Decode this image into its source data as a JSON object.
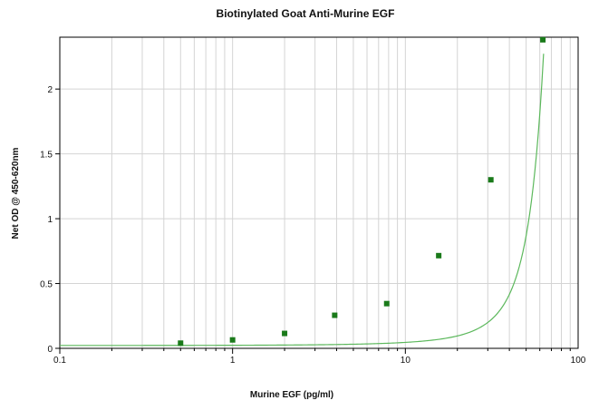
{
  "chart_data": {
    "type": "scatter",
    "title": "Biotinylated Goat Anti-Murine EGF",
    "xlabel": "Murine EGF (pg/ml)",
    "ylabel": "Net OD @ 450-620nm",
    "x_scale": "log",
    "xlim": [
      0.1,
      100
    ],
    "ylim": [
      0,
      2.4
    ],
    "x_ticks": [
      0.1,
      1,
      10,
      100
    ],
    "x_tick_labels": [
      "0.1",
      "1",
      "10",
      "100"
    ],
    "y_ticks": [
      0,
      0.5,
      1,
      1.5,
      2
    ],
    "y_tick_labels": [
      "0",
      "0.5",
      "1",
      "1.5",
      "2"
    ],
    "grid": true,
    "series": [
      {
        "points": [
          {
            "x": 0.5,
            "y": 0.04
          },
          {
            "x": 1,
            "y": 0.065
          },
          {
            "x": 2,
            "y": 0.115
          },
          {
            "x": 3.9,
            "y": 0.255
          },
          {
            "x": 7.8,
            "y": 0.345
          },
          {
            "x": 15.6,
            "y": 0.715
          },
          {
            "x": 31.25,
            "y": 1.3
          },
          {
            "x": 62.5,
            "y": 2.38
          }
        ],
        "color": "#1a7a1a"
      }
    ],
    "fit_curve": {
      "type": "exponential",
      "a": 0.022,
      "b": 0.0735,
      "color": "#5cb85c"
    }
  }
}
